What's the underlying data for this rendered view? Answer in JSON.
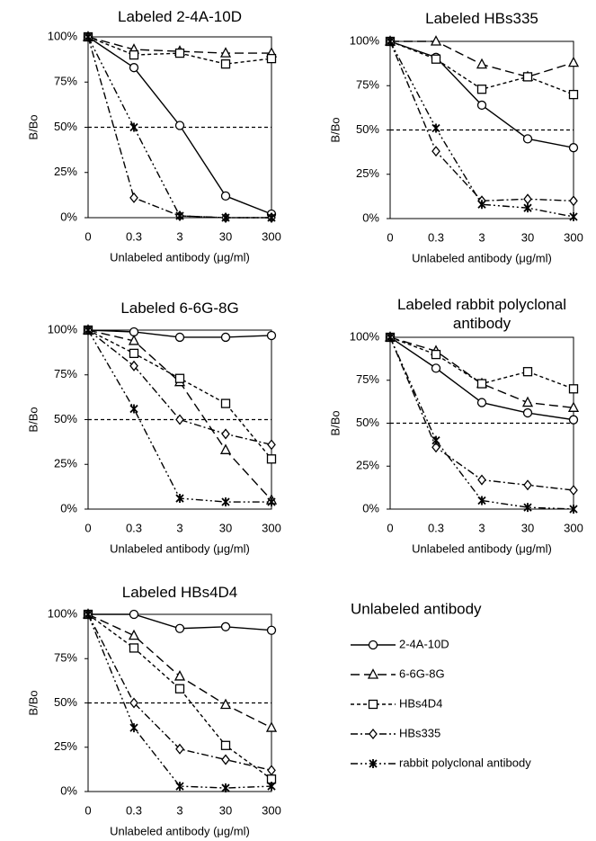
{
  "chart_data": [
    {
      "type": "line",
      "title": "Labeled 2-4A-10D",
      "y_label": "B/Bo",
      "x_label": "Unlabeled antibody (μg/ml)",
      "categories": [
        "0",
        "0.3",
        "3",
        "30",
        "300"
      ],
      "ylim": [
        0,
        100
      ],
      "yticks": [
        {
          "value": 0,
          "label": "0%"
        },
        {
          "value": 25,
          "label": "25%"
        },
        {
          "value": 50,
          "label": "50%"
        },
        {
          "value": 75,
          "label": "75%"
        },
        {
          "value": 100,
          "label": "100%"
        }
      ],
      "reference_line": 50,
      "series": [
        {
          "values": [
            100,
            83,
            51,
            12,
            2
          ]
        },
        {
          "values": [
            100,
            93,
            92,
            91,
            91
          ]
        },
        {
          "values": [
            100,
            90,
            91,
            85,
            88
          ]
        },
        {
          "values": [
            100,
            11,
            1,
            0,
            0
          ]
        },
        {
          "values": [
            100,
            50,
            1,
            0,
            0
          ]
        }
      ]
    },
    {
      "type": "line",
      "title": "Labeled HBs335",
      "y_label": "B/Bo",
      "x_label": "Unlabeled antibody (μg/ml)",
      "categories": [
        "0",
        "0.3",
        "3",
        "30",
        "300"
      ],
      "ylim": [
        0,
        100
      ],
      "yticks": [
        {
          "value": 0,
          "label": "0%"
        },
        {
          "value": 25,
          "label": "25%"
        },
        {
          "value": 50,
          "label": "50%"
        },
        {
          "value": 75,
          "label": "75%"
        },
        {
          "value": 100,
          "label": "100%"
        }
      ],
      "reference_line": 50,
      "series": [
        {
          "values": [
            100,
            91,
            64,
            45,
            40
          ]
        },
        {
          "values": [
            100,
            100,
            87,
            80,
            88
          ]
        },
        {
          "values": [
            100,
            90,
            73,
            80,
            70
          ]
        },
        {
          "values": [
            100,
            38,
            10,
            11,
            10
          ]
        },
        {
          "values": [
            100,
            51,
            8,
            6,
            1
          ]
        }
      ]
    },
    {
      "type": "line",
      "title": "Labeled 6-6G-8G",
      "y_label": "B/Bo",
      "x_label": "Unlabeled antibody (μg/ml)",
      "categories": [
        "0",
        "0.3",
        "3",
        "30",
        "300"
      ],
      "ylim": [
        0,
        100
      ],
      "yticks": [
        {
          "value": 0,
          "label": "0%"
        },
        {
          "value": 25,
          "label": "25%"
        },
        {
          "value": 50,
          "label": "50%"
        },
        {
          "value": 75,
          "label": "75%"
        },
        {
          "value": 100,
          "label": "100%"
        }
      ],
      "reference_line": 50,
      "series": [
        {
          "values": [
            100,
            99,
            96,
            96,
            97
          ]
        },
        {
          "values": [
            100,
            94,
            71,
            33,
            5
          ]
        },
        {
          "values": [
            100,
            87,
            73,
            59,
            28
          ]
        },
        {
          "values": [
            100,
            80,
            50,
            42,
            36
          ]
        },
        {
          "values": [
            100,
            56,
            6,
            4,
            4
          ]
        }
      ]
    },
    {
      "type": "line",
      "title": "Labeled rabbit polyclonal antibody",
      "y_label": "B/Bo",
      "x_label": "Unlabeled antibody (μg/ml)",
      "categories": [
        "0",
        "0.3",
        "3",
        "30",
        "300"
      ],
      "ylim": [
        0,
        100
      ],
      "yticks": [
        {
          "value": 0,
          "label": "0%"
        },
        {
          "value": 25,
          "label": "25%"
        },
        {
          "value": 50,
          "label": "50%"
        },
        {
          "value": 75,
          "label": "75%"
        },
        {
          "value": 100,
          "label": "100%"
        }
      ],
      "reference_line": 50,
      "series": [
        {
          "values": [
            100,
            82,
            62,
            56,
            52
          ]
        },
        {
          "values": [
            100,
            92,
            73,
            62,
            59
          ]
        },
        {
          "values": [
            100,
            90,
            73,
            80,
            70
          ]
        },
        {
          "values": [
            100,
            36,
            17,
            14,
            11
          ]
        },
        {
          "values": [
            100,
            40,
            5,
            1,
            0
          ]
        }
      ]
    },
    {
      "type": "line",
      "title": "Labeled HBs4D4",
      "y_label": "B/Bo",
      "x_label": "Unlabeled antibody (μg/ml)",
      "categories": [
        "0",
        "0.3",
        "3",
        "30",
        "300"
      ],
      "ylim": [
        0,
        100
      ],
      "yticks": [
        {
          "value": 0,
          "label": "0%"
        },
        {
          "value": 25,
          "label": "25%"
        },
        {
          "value": 50,
          "label": "50%"
        },
        {
          "value": 75,
          "label": "75%"
        },
        {
          "value": 100,
          "label": "100%"
        }
      ],
      "reference_line": 50,
      "series": [
        {
          "values": [
            100,
            100,
            92,
            93,
            91
          ]
        },
        {
          "values": [
            100,
            88,
            65,
            49,
            36
          ]
        },
        {
          "values": [
            100,
            81,
            58,
            26,
            7
          ]
        },
        {
          "values": [
            100,
            50,
            24,
            18,
            12
          ]
        },
        {
          "values": [
            100,
            36,
            3,
            2,
            3
          ]
        }
      ]
    }
  ],
  "legend": {
    "title": "Unlabeled antibody",
    "color": "#000000",
    "entries": [
      {
        "name": "2-4A-10D",
        "marker": "circle",
        "dash": "solid"
      },
      {
        "name": "6-6G-8G",
        "marker": "triangle",
        "dash": "long-dash"
      },
      {
        "name": "HBs4D4",
        "marker": "square",
        "dash": "short-dash"
      },
      {
        "name": "HBs335",
        "marker": "diamond",
        "dash": "dash-dot"
      },
      {
        "name": "rabbit polyclonal antibody",
        "marker": "cross",
        "dash": "dash-dot-dot"
      }
    ]
  }
}
